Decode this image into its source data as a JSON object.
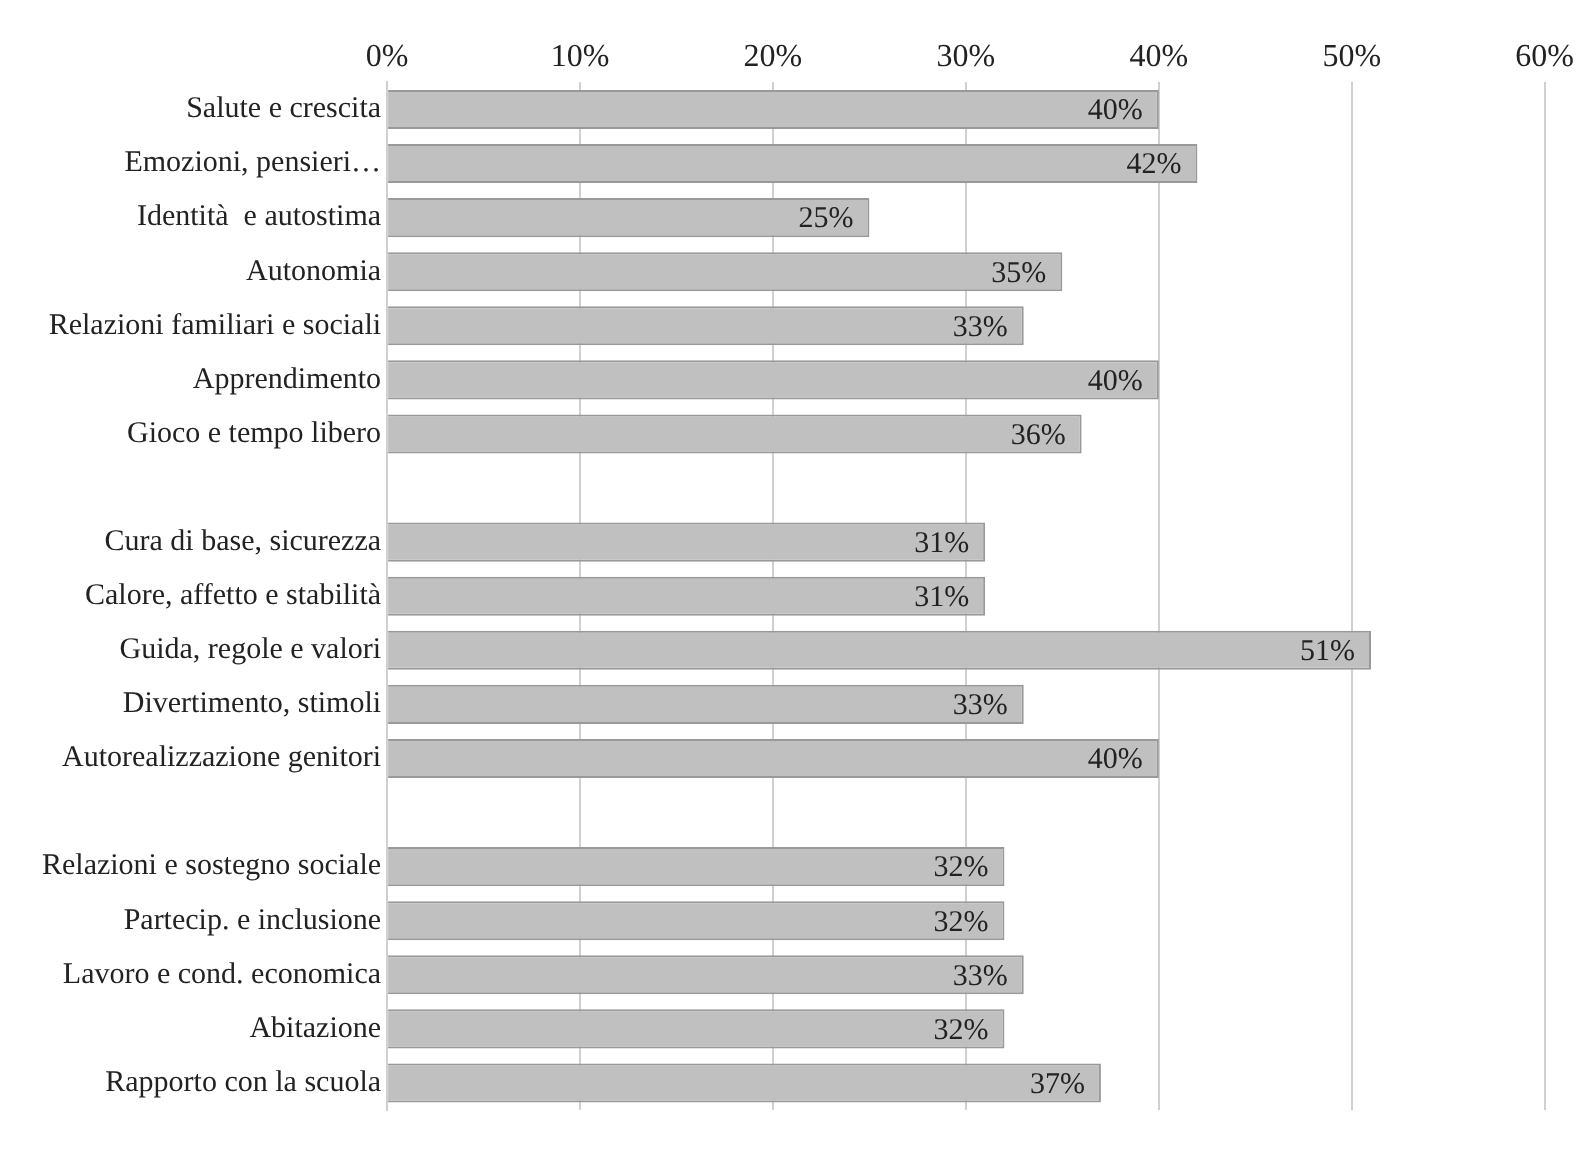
{
  "chart_data": {
    "type": "bar",
    "orientation": "horizontal",
    "categories": [
      "Salute e crescita",
      "Emozioni, pensieri…",
      "Identità  e autostima",
      "Autonomia",
      "Relazioni familiari e sociali",
      "Apprendimento",
      "Gioco e tempo libero",
      null,
      "Cura di base, sicurezza",
      "Calore, affetto e stabilità",
      "Guida, regole e valori",
      "Divertimento, stimoli",
      "Autorealizzazione genitori",
      null,
      "Relazioni e sostegno sociale",
      "Partecip. e inclusione",
      "Lavoro e cond. economica",
      "Abitazione",
      "Rapporto con la scuola"
    ],
    "values": [
      40,
      42,
      25,
      35,
      33,
      40,
      36,
      null,
      31,
      31,
      51,
      33,
      40,
      null,
      32,
      32,
      33,
      32,
      37
    ],
    "value_labels": [
      "40%",
      "42%",
      "25%",
      "35%",
      "33%",
      "40%",
      "36%",
      null,
      "31%",
      "31%",
      "51%",
      "33%",
      "40%",
      null,
      "32%",
      "32%",
      "33%",
      "32%",
      "37%"
    ],
    "color": "#c0c0c0",
    "xlim": [
      0,
      60
    ],
    "xticks": [
      {
        "value": 0,
        "label": "0%"
      },
      {
        "value": 10,
        "label": "10%"
      },
      {
        "value": 20,
        "label": "20%"
      },
      {
        "value": 30,
        "label": "30%"
      },
      {
        "value": 40,
        "label": "40%"
      },
      {
        "value": 50,
        "label": "50%"
      },
      {
        "value": 60,
        "label": "60%"
      }
    ],
    "grid": "x",
    "legend": false
  }
}
